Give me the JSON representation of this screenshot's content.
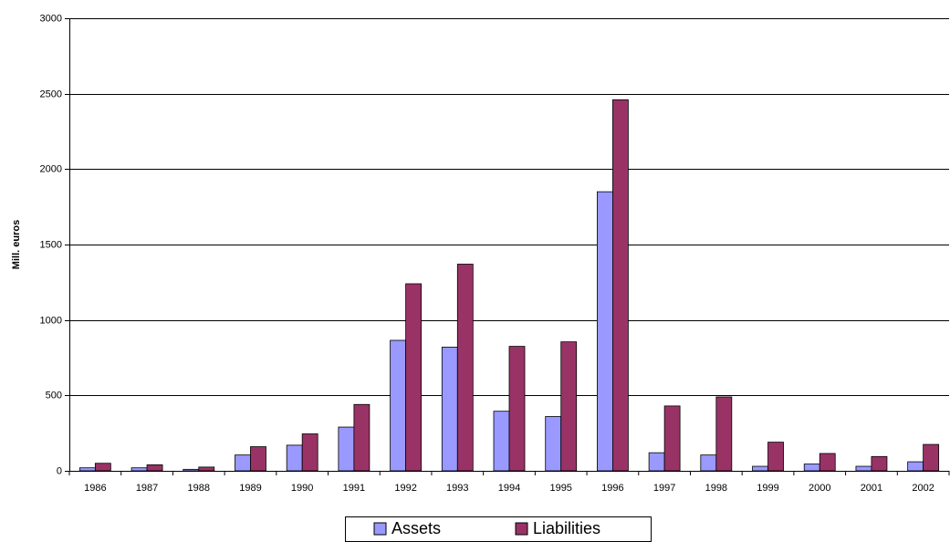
{
  "chart_data": {
    "type": "bar",
    "y_label": "Mill. euros",
    "categories": [
      "1986",
      "1987",
      "1988",
      "1989",
      "1990",
      "1991",
      "1992",
      "1993",
      "1994",
      "1995",
      "1996",
      "1997",
      "1998",
      "1999",
      "2000",
      "2001",
      "2002"
    ],
    "series": [
      {
        "name": "Assets",
        "color": "#9999ff",
        "values": [
          20,
          20,
          10,
          105,
          170,
          290,
          865,
          820,
          395,
          360,
          1850,
          120,
          105,
          30,
          45,
          30,
          60
        ]
      },
      {
        "name": "Liabilities",
        "color": "#993366",
        "values": [
          50,
          40,
          25,
          160,
          245,
          440,
          1240,
          1370,
          825,
          855,
          2460,
          430,
          490,
          190,
          115,
          95,
          175
        ]
      }
    ],
    "ylim": [
      0,
      3000
    ],
    "yticks": [
      0,
      500,
      1000,
      1500,
      2000,
      2500,
      3000
    ],
    "grid": true
  }
}
